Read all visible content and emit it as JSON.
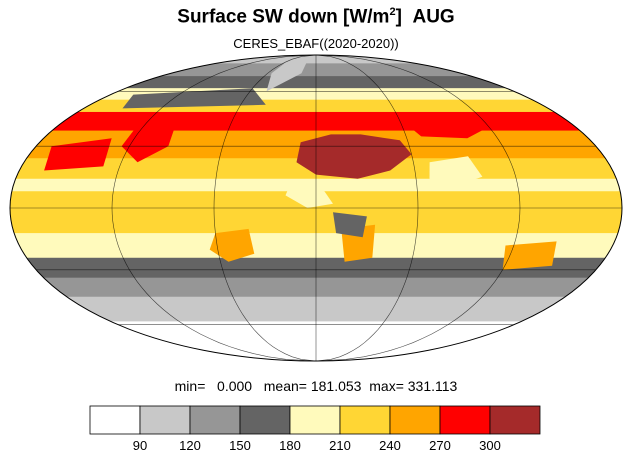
{
  "title": {
    "text": "Surface SW down [W/m",
    "superscript": "2",
    "suffix": "]",
    "month": "AUG"
  },
  "subtitle": "CERES_EBAF((2020-2020))",
  "stats": {
    "min_label": "min=",
    "min": "0.000",
    "mean_label": "mean=",
    "mean": "181.053",
    "max_label": "max=",
    "max": "331.113"
  },
  "colorbar": {
    "levels": [
      "90",
      "120",
      "150",
      "180",
      "210",
      "240",
      "270",
      "300"
    ],
    "colors": [
      "#ffffff",
      "#c8c8c8",
      "#969696",
      "#646464",
      "#fffabc",
      "#ffd634",
      "#ffa500",
      "#ff0000",
      "#a52a2a"
    ]
  },
  "map": {
    "projection": "Mollweide",
    "zonal_bands": [
      {
        "lat": 80,
        "level": 1
      },
      {
        "lat": 70,
        "level": 2
      },
      {
        "lat": 62,
        "level": 3
      },
      {
        "lat": 55,
        "level": 4
      },
      {
        "lat": 48,
        "level": 5
      },
      {
        "lat": 38,
        "level": 7
      },
      {
        "lat": 24,
        "level": 6
      },
      {
        "lat": 14,
        "level": 5
      },
      {
        "lat": 8,
        "level": 4
      },
      {
        "lat": 0,
        "level": 5
      },
      {
        "lat": -12,
        "level": 5
      },
      {
        "lat": -24,
        "level": 4
      },
      {
        "lat": -34,
        "level": 3
      },
      {
        "lat": -44,
        "level": 2
      },
      {
        "lat": -58,
        "level": 1
      },
      {
        "lat": -90,
        "level": 0
      }
    ]
  }
}
